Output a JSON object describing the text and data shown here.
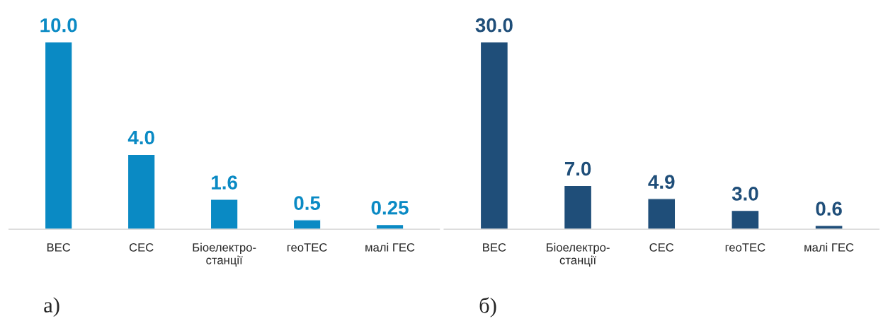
{
  "chart_data": [
    {
      "type": "bar",
      "categories": [
        "ВЕС",
        "СЕС",
        "Біоелектро-\nстанції",
        "геоТЕС",
        "малі ГЕС"
      ],
      "values": [
        10.0,
        4.0,
        1.6,
        0.5,
        0.25
      ],
      "value_labels": [
        "10.0",
        "4.0",
        "1.6",
        "0.5",
        "0.25"
      ],
      "color": "#0a8ac4",
      "annotations": [
        "а)"
      ]
    },
    {
      "type": "bar",
      "categories": [
        "ВЕС",
        "Біоелектро-\nстанції",
        "СЕС",
        "геоТЕС",
        "малі ГЕС"
      ],
      "values": [
        30.0,
        7.0,
        4.9,
        3.0,
        0.6
      ],
      "value_labels": [
        "30.0",
        "7.0",
        "4.9",
        "3.0",
        "0.6"
      ],
      "color": "#1f4e79",
      "annotations": [
        "б)"
      ]
    }
  ]
}
